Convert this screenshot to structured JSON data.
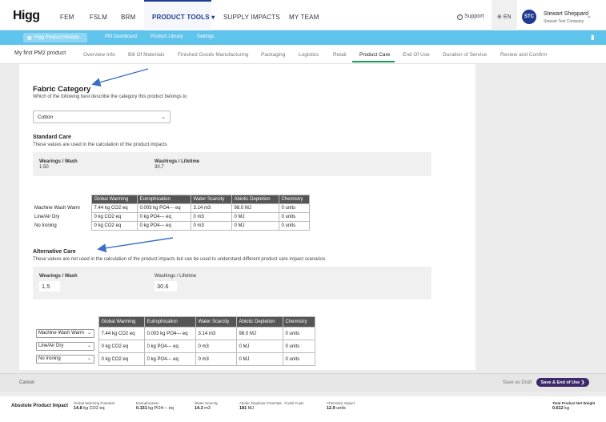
{
  "topnav": {
    "logo": "Higg",
    "items": [
      "FEM",
      "FSLM",
      "BRM",
      "PRODUCT TOOLS",
      "SUPPLY IMPACTS",
      "MY TEAM"
    ],
    "product_tools_chevron": "▾",
    "support_icon": "?",
    "support": "Support",
    "lang_icon": "⊕",
    "lang": "EN",
    "avatar": "STC",
    "user_name": "Stewart Sheppard",
    "user_company": "Stewart Test Company",
    "user_chevron": "⌄"
  },
  "modulebar": {
    "module_icon": "▦",
    "module": "Higg Product Module",
    "links": [
      "PM Dashboard",
      "Product Library",
      "Settings"
    ],
    "right_icon": "▮"
  },
  "steps": {
    "product_name": "My first PM2 product",
    "tabs": [
      "Overview Info",
      "Bill Of Materials",
      "Finished Goods Manufacturing",
      "Packaging",
      "Logistics",
      "Retail",
      "Product Care",
      "End Of Use",
      "Duration of Service",
      "Review and Confirm"
    ],
    "active": "Product Care"
  },
  "fabric": {
    "heading": "Fabric Category",
    "description": "Which of the following best describe the category this product belongs to",
    "selected": "Cotton"
  },
  "standard_care": {
    "heading": "Standard Care",
    "description": "These values are used in the calculation of the product impacts",
    "wearings_label": "Wearings / Wash",
    "wearings_value": "1.50",
    "washings_label": "Washings / Lifetime",
    "washings_value": "30.7",
    "columns": [
      "Global Warming",
      "Eutrophication",
      "Water Scarcity",
      "Abiotic Depletion",
      "Chemistry"
    ],
    "rows": [
      {
        "label": "Machine Wash Warm",
        "cells": [
          "7.44 kg CO2 eq",
          "0.003 kg PO4--- eq",
          "3.14 m3",
          "98.0 MJ",
          "0 units"
        ]
      },
      {
        "label": "Line/Air Dry",
        "cells": [
          "0 kg CO2 eq",
          "0 kg PO4--- eq",
          "0 m3",
          "0 MJ",
          "0 units"
        ]
      },
      {
        "label": "No Ironing",
        "cells": [
          "0 kg CO2 eq",
          "0 kg PO4--- eq",
          "0 m3",
          "0 MJ",
          "0 units"
        ]
      }
    ]
  },
  "alternative_care": {
    "heading": "Alternative Care",
    "description": "These values are not used in the calculation of the product impacts but can be used to understand different product care impact scenarios",
    "wearings_label": "Wearings / Wash",
    "wearings_value": "1.5",
    "washings_label": "Washings / Lifetime",
    "washings_value": "30.6",
    "columns": [
      "Global Warming",
      "Eutrophication",
      "Water Scarcity",
      "Abiotic Depletion",
      "Chemistry"
    ],
    "rows": [
      {
        "label": "Machine Wash Warm",
        "cells": [
          "7.44 kg CO2 eq",
          "0.003 kg PO4--- eq",
          "3.14 m3",
          "98.0 MJ",
          "0 units"
        ]
      },
      {
        "label": "Line/Air Dry",
        "cells": [
          "0 kg CO2 eq",
          "0 kg PO4--- eq",
          "0 m3",
          "0 MJ",
          "0 units"
        ]
      },
      {
        "label": "No Ironing",
        "cells": [
          "0 kg CO2 eq",
          "0 kg PO4--- eq",
          "0 m3",
          "0 MJ",
          "0 units"
        ]
      }
    ]
  },
  "footer": {
    "cancel": "Cancel",
    "save_draft": "Save as Draft",
    "save_next": "Save & End of Use",
    "save_next_icon": "❯"
  },
  "absolute_impact": {
    "title": "Absolute Product Impact",
    "metrics": [
      {
        "label": "Global Warming Potential",
        "value": "14.8",
        "unit": "kg CO2 eq"
      },
      {
        "label": "Eutrophication",
        "value": "0.151",
        "unit": "kg PO4--- eq"
      },
      {
        "label": "Water Scarcity",
        "value": "14.3",
        "unit": "m3"
      },
      {
        "label": "Abiotic Depletion Potential - Fossil Fuels",
        "value": "181",
        "unit": "MJ"
      },
      {
        "label": "Chemistry Impact",
        "value": "12.9",
        "unit": "units"
      }
    ],
    "total_label": "Total Product Net Weight",
    "total_value": "0.612",
    "total_unit": "kg"
  },
  "colors": {
    "brand_blue": "#1f3a93",
    "module_bar": "#5fc4ec",
    "active_step": "#1a9c5a",
    "primary_button": "#3e2a6b",
    "annotation_arrow": "#3b6fc4"
  }
}
